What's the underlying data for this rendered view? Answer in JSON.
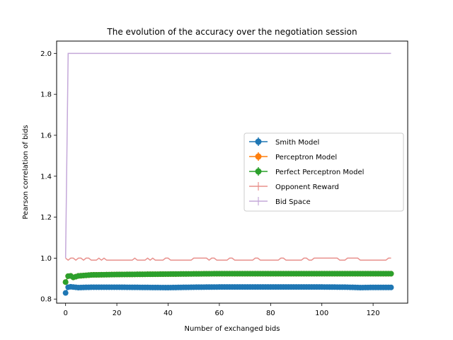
{
  "chart_data": {
    "type": "line",
    "title": "The evolution of the accuracy over the negotiation session",
    "xlabel": "Number of exchanged bids",
    "ylabel": "Pearson correlation of bids",
    "xlim": [
      -3.5,
      133.5
    ],
    "ylim": [
      0.78,
      2.06
    ],
    "xticks": [
      0,
      20,
      40,
      60,
      80,
      100,
      120
    ],
    "yticks": [
      0.8,
      1.0,
      1.2,
      1.4,
      1.6,
      1.8,
      2.0
    ],
    "ytick_labels": [
      "0.8",
      "1.0",
      "1.2",
      "1.4",
      "1.6",
      "1.8",
      "2.0"
    ],
    "grid": false,
    "legend_position": "center-right",
    "series": [
      {
        "name": "Smith Model",
        "color": "#1f77b4",
        "marker": "circle",
        "x_range": [
          0,
          127
        ],
        "points": [
          [
            0,
            0.83
          ],
          [
            1,
            0.858
          ],
          [
            2,
            0.86
          ],
          [
            5,
            0.856
          ],
          [
            10,
            0.858
          ],
          [
            20,
            0.858
          ],
          [
            30,
            0.857
          ],
          [
            40,
            0.856
          ],
          [
            50,
            0.858
          ],
          [
            60,
            0.859
          ],
          [
            70,
            0.859
          ],
          [
            80,
            0.859
          ],
          [
            90,
            0.859
          ],
          [
            100,
            0.859
          ],
          [
            110,
            0.858
          ],
          [
            115,
            0.856
          ],
          [
            120,
            0.857
          ],
          [
            127,
            0.857
          ]
        ]
      },
      {
        "name": "Perceptron Model",
        "color": "#ff7f0e",
        "marker": "circle",
        "x_range": [
          0,
          127
        ],
        "points": [
          [
            0,
            0.883
          ],
          [
            1,
            0.912
          ],
          [
            2,
            0.913
          ],
          [
            3,
            0.906
          ],
          [
            5,
            0.913
          ],
          [
            10,
            0.918
          ],
          [
            20,
            0.92
          ],
          [
            30,
            0.921
          ],
          [
            40,
            0.922
          ],
          [
            50,
            0.923
          ],
          [
            60,
            0.924
          ],
          [
            80,
            0.924
          ],
          [
            100,
            0.924
          ],
          [
            127,
            0.924
          ]
        ]
      },
      {
        "name": "Perfect Perceptron Model",
        "color": "#2ca02c",
        "marker": "circle",
        "x_range": [
          0,
          127
        ],
        "points": [
          [
            0,
            0.883
          ],
          [
            1,
            0.912
          ],
          [
            2,
            0.913
          ],
          [
            3,
            0.906
          ],
          [
            5,
            0.913
          ],
          [
            10,
            0.918
          ],
          [
            20,
            0.92
          ],
          [
            30,
            0.921
          ],
          [
            40,
            0.922
          ],
          [
            50,
            0.923
          ],
          [
            60,
            0.924
          ],
          [
            80,
            0.924
          ],
          [
            100,
            0.924
          ],
          [
            127,
            0.924
          ]
        ]
      },
      {
        "name": "Opponent Reward",
        "color": "#e8908c",
        "marker": "none",
        "x": [
          0,
          1,
          2,
          3,
          4,
          5,
          6,
          7,
          8,
          9,
          10,
          11,
          12,
          13,
          14,
          15,
          16,
          17,
          18,
          19,
          20,
          21,
          22,
          23,
          24,
          25,
          26,
          27,
          28,
          29,
          30,
          31,
          32,
          33,
          34,
          35,
          36,
          37,
          38,
          39,
          40,
          41,
          42,
          43,
          44,
          45,
          46,
          47,
          48,
          49,
          50,
          51,
          52,
          53,
          54,
          55,
          56,
          57,
          58,
          59,
          60,
          61,
          62,
          63,
          64,
          65,
          66,
          67,
          68,
          69,
          70,
          71,
          72,
          73,
          74,
          75,
          76,
          77,
          78,
          79,
          80,
          81,
          82,
          83,
          84,
          85,
          86,
          87,
          88,
          89,
          90,
          91,
          92,
          93,
          94,
          95,
          96,
          97,
          98,
          99,
          100,
          101,
          102,
          103,
          104,
          105,
          106,
          107,
          108,
          109,
          110,
          111,
          112,
          113,
          114,
          115,
          116,
          117,
          118,
          119,
          120,
          121,
          122,
          123,
          124,
          125,
          126,
          127
        ],
        "values": [
          1.0,
          0.99,
          1.0,
          1.0,
          0.99,
          1.0,
          1.0,
          0.99,
          1.0,
          1.0,
          0.99,
          0.99,
          0.99,
          1.0,
          0.99,
          1.0,
          0.99,
          0.99,
          0.99,
          0.99,
          0.99,
          0.99,
          0.99,
          0.99,
          0.99,
          0.99,
          0.99,
          1.0,
          0.99,
          0.99,
          0.99,
          0.99,
          1.0,
          0.99,
          1.0,
          0.99,
          0.99,
          0.99,
          0.99,
          1.0,
          1.0,
          0.99,
          0.99,
          0.99,
          0.99,
          0.99,
          0.99,
          0.99,
          0.99,
          0.99,
          1.0,
          1.0,
          1.0,
          1.0,
          1.0,
          1.0,
          0.99,
          1.0,
          1.0,
          0.99,
          0.99,
          0.99,
          0.99,
          0.99,
          1.0,
          1.0,
          0.99,
          0.99,
          0.99,
          0.99,
          0.99,
          0.99,
          0.99,
          0.99,
          1.0,
          1.0,
          0.99,
          0.99,
          0.99,
          0.99,
          0.99,
          0.99,
          0.99,
          0.99,
          1.0,
          1.0,
          0.99,
          0.99,
          0.99,
          0.99,
          0.99,
          0.99,
          0.99,
          1.0,
          1.0,
          0.99,
          0.99,
          1.0,
          1.0,
          1.0,
          1.0,
          1.0,
          1.0,
          1.0,
          1.0,
          1.0,
          1.0,
          0.99,
          0.99,
          0.99,
          1.0,
          1.0,
          1.0,
          1.0,
          1.0,
          0.99,
          0.99,
          0.99,
          0.99,
          0.99,
          0.99,
          0.99,
          0.99,
          0.99,
          0.99,
          0.99,
          1.0,
          1.0
        ]
      },
      {
        "name": "Bid Space",
        "color": "#c4a8d9",
        "marker": "none",
        "x": [
          0,
          1,
          127
        ],
        "values": [
          1.0,
          2.0,
          2.0
        ]
      }
    ]
  }
}
